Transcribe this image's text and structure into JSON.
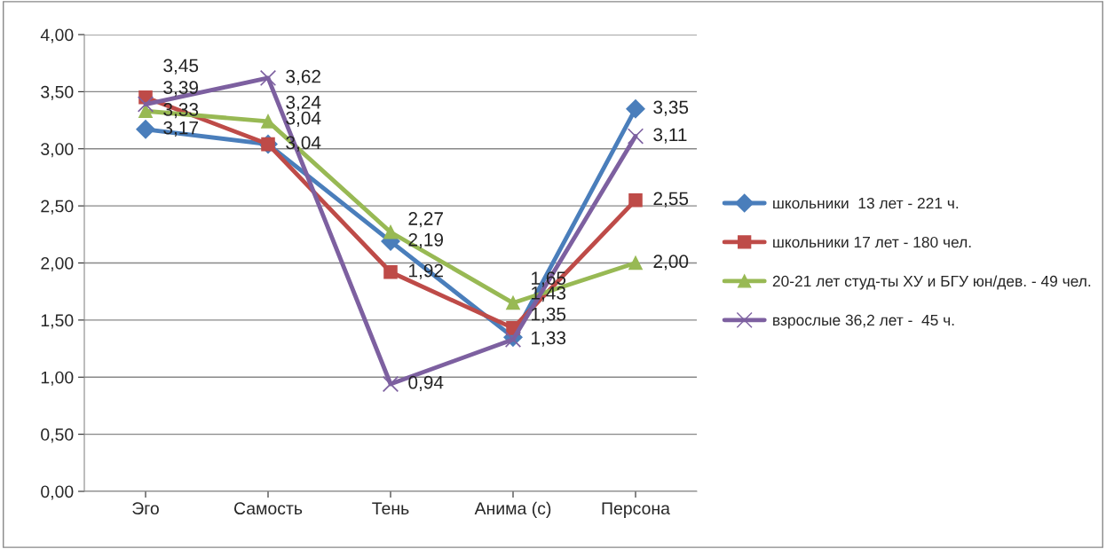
{
  "chart_data": {
    "type": "line",
    "categories": [
      "Эго",
      "Самость",
      "Тень",
      "Анима (с)",
      "Персона"
    ],
    "series": [
      {
        "name": "школьники  13 лет - 221 ч.",
        "color": "#4a7ebb",
        "marker": "diamond",
        "values": [
          3.17,
          3.04,
          2.19,
          1.35,
          3.35
        ],
        "value_labels": [
          "3,17",
          "3,04",
          "2,19",
          "1,35",
          "3,35"
        ]
      },
      {
        "name": "школьники 17 лет - 180 чел.",
        "color": "#be4b48",
        "marker": "square",
        "values": [
          3.45,
          3.04,
          1.92,
          1.43,
          2.55
        ],
        "value_labels": [
          "3,45",
          "3,04",
          "1,92",
          "1,43",
          "2,55"
        ]
      },
      {
        "name": "20-21 лет студ-ты ХУ и БГУ юн/дев. - 49 чел.",
        "color": "#98b954",
        "marker": "triangle",
        "values": [
          3.33,
          3.24,
          2.27,
          1.65,
          2.0
        ],
        "value_labels": [
          "3,33",
          "3,24",
          "2,27",
          "1,65",
          "2,00"
        ]
      },
      {
        "name": "взрослые 36,2 лет -  45 ч.",
        "color": "#7d60a0",
        "marker": "cross",
        "values": [
          3.39,
          3.62,
          0.94,
          1.33,
          3.11
        ],
        "value_labels": [
          "3,39",
          "3,62",
          "0,94",
          "1,33",
          "3,11"
        ]
      }
    ],
    "ylim": [
      0,
      4
    ],
    "yticks": [
      {
        "value": 0,
        "label": "0,00"
      },
      {
        "value": 0.5,
        "label": "0,50"
      },
      {
        "value": 1,
        "label": "1,00"
      },
      {
        "value": 1.5,
        "label": "1,50"
      },
      {
        "value": 2,
        "label": "2,00"
      },
      {
        "value": 2.5,
        "label": "2,50"
      },
      {
        "value": 3,
        "label": "3,00"
      },
      {
        "value": 3.5,
        "label": "3,50"
      },
      {
        "value": 4,
        "label": "4,00"
      }
    ],
    "grid": "y",
    "legend": "right",
    "line_style": "solid"
  }
}
